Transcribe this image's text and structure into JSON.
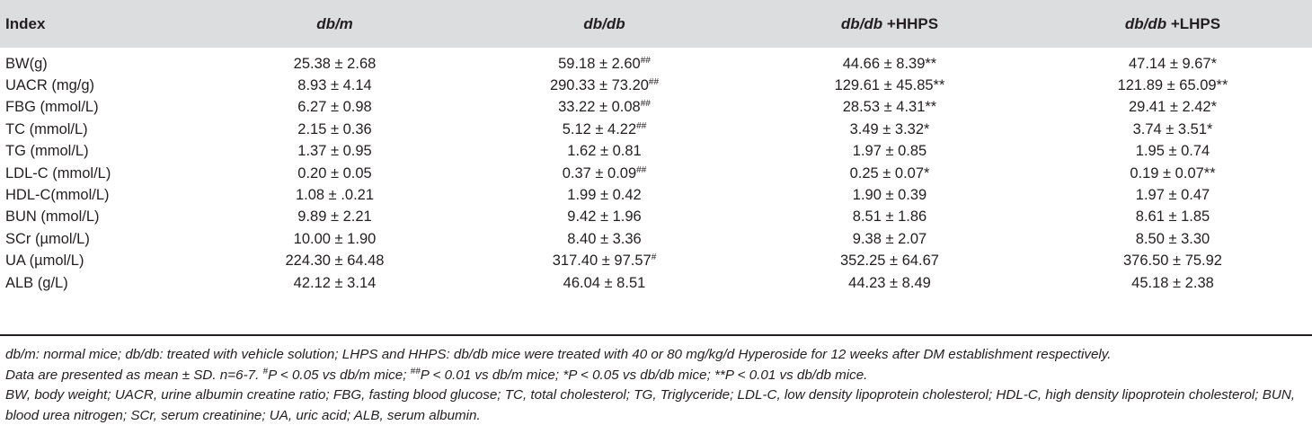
{
  "table": {
    "headers": [
      {
        "main": "Index",
        "suffix": ""
      },
      {
        "main": "db/m",
        "suffix": ""
      },
      {
        "main": "db/db",
        "suffix": ""
      },
      {
        "main": "db/db",
        "suffix": " +HHPS"
      },
      {
        "main": "db/db",
        "suffix": " +LHPS"
      }
    ],
    "rows": [
      {
        "label": "BW(g)",
        "cells": [
          {
            "v": "25.38 ± 2.68",
            "s": ""
          },
          {
            "v": "59.18 ± 2.60",
            "s": "##"
          },
          {
            "v": "44.66 ± 8.39**",
            "s": ""
          },
          {
            "v": "47.14 ± 9.67*",
            "s": ""
          }
        ]
      },
      {
        "label": "UACR (mg/g)",
        "cells": [
          {
            "v": "8.93 ± 4.14",
            "s": ""
          },
          {
            "v": "290.33 ± 73.20",
            "s": "##"
          },
          {
            "v": "129.61 ± 45.85**",
            "s": ""
          },
          {
            "v": "121.89 ± 65.09**",
            "s": ""
          }
        ]
      },
      {
        "label": "FBG (mmol/L)",
        "cells": [
          {
            "v": "6.27 ± 0.98",
            "s": ""
          },
          {
            "v": "33.22 ± 0.08",
            "s": "##"
          },
          {
            "v": "28.53 ± 4.31**",
            "s": ""
          },
          {
            "v": "29.41 ± 2.42*",
            "s": ""
          }
        ]
      },
      {
        "label": "TC (mmol/L)",
        "cells": [
          {
            "v": "2.15 ± 0.36",
            "s": ""
          },
          {
            "v": "5.12 ± 4.22",
            "s": "##"
          },
          {
            "v": "3.49 ± 3.32*",
            "s": ""
          },
          {
            "v": "3.74 ± 3.51*",
            "s": ""
          }
        ]
      },
      {
        "label": "TG (mmol/L)",
        "cells": [
          {
            "v": "1.37 ± 0.95",
            "s": ""
          },
          {
            "v": "1.62 ± 0.81",
            "s": ""
          },
          {
            "v": "1.97 ± 0.85",
            "s": ""
          },
          {
            "v": "1.95 ± 0.74",
            "s": ""
          }
        ]
      },
      {
        "label": "LDL-C (mmol/L)",
        "cells": [
          {
            "v": "0.20 ± 0.05",
            "s": ""
          },
          {
            "v": "0.37 ± 0.09",
            "s": "##"
          },
          {
            "v": "0.25 ± 0.07*",
            "s": ""
          },
          {
            "v": "0.19 ± 0.07**",
            "s": ""
          }
        ]
      },
      {
        "label": "HDL-C(mmol/L)",
        "cells": [
          {
            "v": "1.08 ± .0.21",
            "s": ""
          },
          {
            "v": "1.99 ± 0.42",
            "s": ""
          },
          {
            "v": "1.90 ± 0.39",
            "s": ""
          },
          {
            "v": "1.97 ± 0.47",
            "s": ""
          }
        ]
      },
      {
        "label": "BUN (mmol/L)",
        "cells": [
          {
            "v": "9.89 ± 2.21",
            "s": ""
          },
          {
            "v": "9.42 ± 1.96",
            "s": ""
          },
          {
            "v": "8.51 ± 1.86",
            "s": ""
          },
          {
            "v": "8.61 ± 1.85",
            "s": ""
          }
        ]
      },
      {
        "label": "SCr (µmol/L)",
        "cells": [
          {
            "v": "10.00 ± 1.90",
            "s": ""
          },
          {
            "v": "8.40 ± 3.36",
            "s": ""
          },
          {
            "v": "9.38 ± 2.07",
            "s": ""
          },
          {
            "v": "8.50 ± 3.30",
            "s": ""
          }
        ]
      },
      {
        "label": "UA (µmol/L)",
        "cells": [
          {
            "v": "224.30 ± 64.48",
            "s": ""
          },
          {
            "v": "317.40 ± 97.57",
            "s": "#"
          },
          {
            "v": "352.25 ± 64.67",
            "s": ""
          },
          {
            "v": "376.50 ± 75.92",
            "s": ""
          }
        ]
      },
      {
        "label": "ALB (g/L)",
        "cells": [
          {
            "v": "42.12 ± 3.14",
            "s": ""
          },
          {
            "v": "46.04 ± 8.51",
            "s": ""
          },
          {
            "v": "44.23 ± 8.49",
            "s": ""
          },
          {
            "v": "45.18 ± 2.38",
            "s": ""
          }
        ]
      }
    ]
  },
  "notes": {
    "line1": "db/m: normal mice; db/db: treated with vehicle solution; LHPS and HHPS: db/db mice were treated with 40 or 80 mg/kg/d Hyperoside for 12 weeks after DM establishment respectively.",
    "line2_a": "Data are presented as mean ± SD. n=6-7. ",
    "line2_sup1": "#",
    "line2_b": "P < 0.05 vs db/m mice; ",
    "line2_sup2": "##",
    "line2_c": "P < 0.01 vs db/m mice; *P < 0.05 vs db/db mice; **P < 0.01 vs db/db mice.",
    "abbrev": "BW, body weight; UACR, urine albumin creatine ratio; FBG, fasting blood glucose; TC, total cholesterol; TG, Triglyceride; LDL-C, low density lipoprotein cholesterol; HDL-C, high density lipoprotein cholesterol; BUN, blood urea nitrogen; SCr, serum creatinine; UA, uric acid; ALB, serum albumin."
  }
}
